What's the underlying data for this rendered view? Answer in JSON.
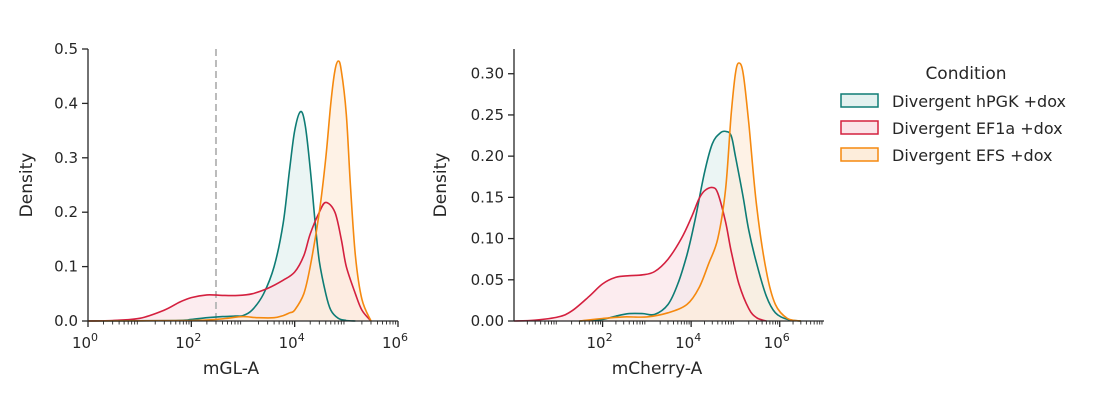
{
  "chart_data": [
    {
      "type": "area",
      "subtype": "kde-density",
      "xscale": "log",
      "xlabel": "mGL-A",
      "ylabel": "Density",
      "xlim": [
        1,
        1000000
      ],
      "ylim": [
        0,
        0.5
      ],
      "xticks": [
        {
          "value": 1,
          "base": "10",
          "exp": "0"
        },
        {
          "value": 100,
          "base": "10",
          "exp": "2"
        },
        {
          "value": 10000,
          "base": "10",
          "exp": "4"
        },
        {
          "value": 1000000,
          "base": "10",
          "exp": "6"
        }
      ],
      "yticks": [
        {
          "value": 0,
          "label": "0.0"
        },
        {
          "value": 0.1,
          "label": "0.1"
        },
        {
          "value": 0.2,
          "label": "0.2"
        },
        {
          "value": 0.3,
          "label": "0.3"
        },
        {
          "value": 0.4,
          "label": "0.4"
        },
        {
          "value": 0.5,
          "label": "0.5"
        }
      ],
      "threshold_line": {
        "x": 300,
        "style": "dashed",
        "color": "#bbbbbb"
      },
      "series": [
        {
          "name": "Divergent hPGK +dox",
          "color": "#0e7c75",
          "fill": "#e3f1ef",
          "x": [
            1,
            50,
            100,
            200,
            400,
            700,
            1000,
            1500,
            2500,
            4000,
            6000,
            8000,
            10000,
            13000,
            16000,
            20000,
            25000,
            30000,
            40000,
            50000,
            70000,
            100000,
            150000
          ],
          "y": [
            0,
            0.001,
            0.003,
            0.006,
            0.008,
            0.009,
            0.01,
            0.02,
            0.05,
            0.1,
            0.18,
            0.28,
            0.35,
            0.385,
            0.36,
            0.28,
            0.18,
            0.11,
            0.05,
            0.02,
            0.005,
            0.001,
            0
          ]
        },
        {
          "name": "Divergent EF1a +dox",
          "color": "#d4203f",
          "fill": "#fbe4e8",
          "x": [
            1,
            3,
            10,
            30,
            60,
            100,
            200,
            400,
            800,
            1500,
            3000,
            6000,
            10000,
            15000,
            20000,
            30000,
            40000,
            60000,
            80000,
            100000,
            150000,
            200000,
            300000
          ],
          "y": [
            0,
            0.001,
            0.005,
            0.02,
            0.035,
            0.043,
            0.048,
            0.047,
            0.047,
            0.05,
            0.06,
            0.075,
            0.09,
            0.12,
            0.16,
            0.2,
            0.218,
            0.2,
            0.15,
            0.1,
            0.05,
            0.02,
            0
          ]
        },
        {
          "name": "Divergent EFS +dox",
          "color": "#f5890f",
          "fill": "#fdeddb",
          "x": [
            1,
            100,
            300,
            500,
            1000,
            2000,
            4000,
            6000,
            8000,
            10000,
            15000,
            20000,
            30000,
            40000,
            50000,
            60000,
            70000,
            80000,
            100000,
            120000,
            150000,
            200000,
            300000
          ],
          "y": [
            0,
            0.001,
            0.003,
            0.005,
            0.008,
            0.006,
            0.006,
            0.01,
            0.015,
            0.02,
            0.05,
            0.1,
            0.2,
            0.3,
            0.4,
            0.46,
            0.478,
            0.46,
            0.38,
            0.25,
            0.12,
            0.04,
            0
          ]
        }
      ]
    },
    {
      "type": "area",
      "subtype": "kde-density",
      "xscale": "log",
      "xlabel": "mCherry-A",
      "ylabel": "Density",
      "xlim": [
        1,
        10000000
      ],
      "ylim": [
        0,
        0.33
      ],
      "xticks": [
        {
          "value": 100,
          "base": "10",
          "exp": "2"
        },
        {
          "value": 10000,
          "base": "10",
          "exp": "4"
        },
        {
          "value": 1000000,
          "base": "10",
          "exp": "6"
        }
      ],
      "yticks": [
        {
          "value": 0,
          "label": "0.00"
        },
        {
          "value": 0.05,
          "label": "0.05"
        },
        {
          "value": 0.1,
          "label": "0.10"
        },
        {
          "value": 0.15,
          "label": "0.15"
        },
        {
          "value": 0.2,
          "label": "0.20"
        },
        {
          "value": 0.25,
          "label": "0.25"
        },
        {
          "value": 0.3,
          "label": "0.30"
        }
      ],
      "series": [
        {
          "name": "Divergent hPGK +dox",
          "color": "#0e7c75",
          "fill": "#e3f1ef",
          "x": [
            30,
            100,
            200,
            400,
            800,
            1500,
            3000,
            5000,
            8000,
            12000,
            20000,
            30000,
            45000,
            60000,
            80000,
            100000,
            150000,
            200000,
            300000,
            500000,
            800000,
            1500000,
            3000000
          ],
          "y": [
            0,
            0.002,
            0.006,
            0.009,
            0.009,
            0.008,
            0.02,
            0.045,
            0.08,
            0.12,
            0.18,
            0.215,
            0.228,
            0.23,
            0.225,
            0.2,
            0.15,
            0.11,
            0.07,
            0.03,
            0.01,
            0.002,
            0
          ]
        },
        {
          "name": "Divergent EF1a +dox",
          "color": "#d4203f",
          "fill": "#fbe4e8",
          "x": [
            1,
            3,
            10,
            20,
            50,
            100,
            200,
            400,
            800,
            1500,
            3000,
            6000,
            10000,
            15000,
            20000,
            30000,
            40000,
            60000,
            80000,
            120000,
            200000,
            300000,
            500000
          ],
          "y": [
            0,
            0.001,
            0.005,
            0.012,
            0.03,
            0.045,
            0.053,
            0.055,
            0.056,
            0.06,
            0.075,
            0.1,
            0.125,
            0.148,
            0.158,
            0.162,
            0.155,
            0.12,
            0.085,
            0.045,
            0.015,
            0.004,
            0
          ]
        },
        {
          "name": "Divergent EFS +dox",
          "color": "#f5890f",
          "fill": "#fdeddb",
          "x": [
            30,
            100,
            300,
            1000,
            3000,
            8000,
            15000,
            25000,
            40000,
            60000,
            80000,
            100000,
            120000,
            150000,
            200000,
            300000,
            500000,
            800000,
            1500000,
            3000000
          ],
          "y": [
            0,
            0.003,
            0.005,
            0.005,
            0.01,
            0.02,
            0.04,
            0.07,
            0.1,
            0.16,
            0.25,
            0.3,
            0.313,
            0.3,
            0.24,
            0.14,
            0.06,
            0.02,
            0.003,
            0
          ]
        }
      ]
    }
  ],
  "legend": {
    "title": "Condition",
    "items": [
      {
        "label": "Divergent hPGK +dox",
        "color": "#0e7c75",
        "fill": "#e3f1ef"
      },
      {
        "label": "Divergent EF1a +dox",
        "color": "#d4203f",
        "fill": "#fbe4e8"
      },
      {
        "label": "Divergent EFS +dox",
        "color": "#f5890f",
        "fill": "#fdeddb"
      }
    ]
  }
}
